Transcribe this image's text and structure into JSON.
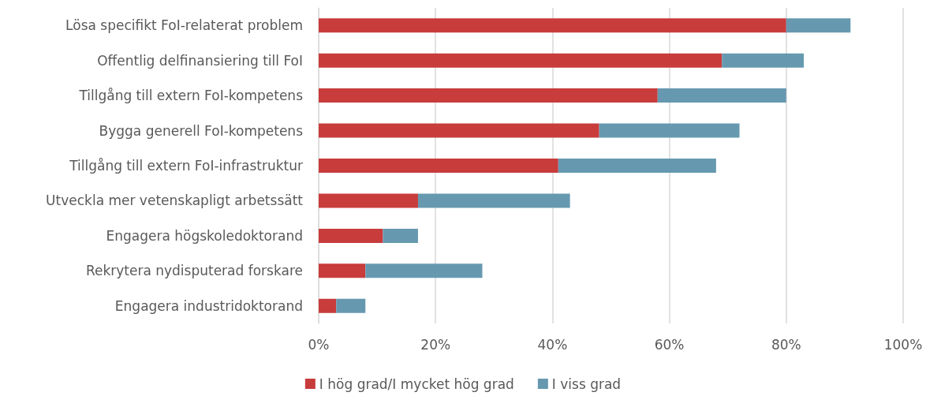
{
  "chart_data": {
    "type": "bar",
    "orientation": "horizontal",
    "stacked": true,
    "categories": [
      "Lösa specifikt FoI-relaterat problem",
      "Offentlig delfinansiering till FoI",
      "Tillgång till extern FoI-kompetens",
      "Bygga generell FoI-kompetens",
      "Tillgång till extern FoI-infrastruktur",
      "Utveckla mer vetenskapligt arbetssätt",
      "Engagera högskoledoktorand",
      "Rekrytera nydisputerad forskare",
      "Engagera industridoktorand"
    ],
    "series": [
      {
        "name": "I hög grad/I mycket hög grad",
        "color": "#c83c3c",
        "values": [
          80,
          69,
          58,
          48,
          41,
          17,
          11,
          8,
          3
        ]
      },
      {
        "name": "I viss grad",
        "color": "#6699b0",
        "values": [
          11,
          14,
          22,
          24,
          27,
          26,
          6,
          20,
          5
        ]
      }
    ],
    "xlim": [
      0,
      100
    ],
    "xticks": [
      {
        "value": 0,
        "label": "0%"
      },
      {
        "value": 20,
        "label": "20%"
      },
      {
        "value": 40,
        "label": "40%"
      },
      {
        "value": 60,
        "label": "60%"
      },
      {
        "value": 80,
        "label": "80%"
      },
      {
        "value": 100,
        "label": "100%"
      }
    ],
    "grid": "x",
    "legend": "bottom"
  }
}
